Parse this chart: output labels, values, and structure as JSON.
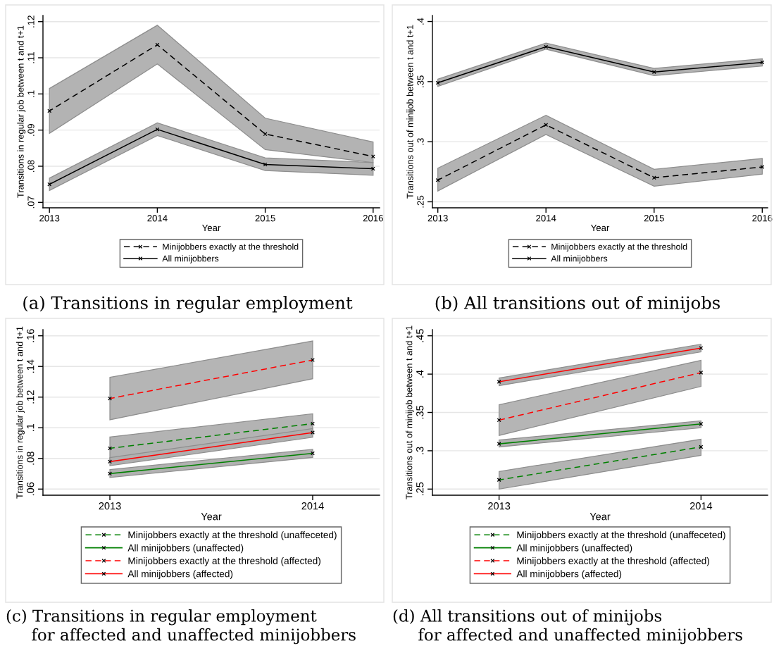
{
  "chart_data": [
    {
      "type": "line",
      "annotations": [
        "(a) Transitions in regular employment"
      ],
      "xlabel": "Year",
      "ylabel": "Transitions in regular job between t and t+1",
      "x": [
        2013,
        2014,
        2015,
        2016
      ],
      "xlim": [
        2012.94,
        2016.06
      ],
      "xticks": [
        2013,
        2014,
        2015,
        2016
      ],
      "ylim": [
        0.0685,
        0.1217
      ],
      "yticks": [
        {
          "value": 0.07,
          "label": ".07"
        },
        {
          "value": 0.08,
          "label": ".08"
        },
        {
          "value": 0.09,
          "label": ".09"
        },
        {
          "value": 0.1,
          "label": ".1"
        },
        {
          "value": 0.11,
          "label": ".11"
        },
        {
          "value": 0.12,
          "label": ".12"
        }
      ],
      "grid": "y",
      "legend": "bottom",
      "marker": "cross",
      "series": [
        {
          "name": "Minijobbers exactly at the threshold",
          "color": "#000000",
          "line_style": "dashed",
          "values": [
            0.0953,
            0.1136,
            0.0889,
            0.0827
          ],
          "lower": [
            0.0891,
            0.1083,
            0.0846,
            0.081
          ],
          "upper": [
            0.1015,
            0.119,
            0.0933,
            0.0867
          ]
        },
        {
          "name": "All minijobbers",
          "color": "#000000",
          "line_style": "solid",
          "values": [
            0.075,
            0.0902,
            0.0805,
            0.0793
          ],
          "lower": [
            0.0733,
            0.0885,
            0.0788,
            0.0775
          ],
          "upper": [
            0.0767,
            0.092,
            0.0823,
            0.081
          ]
        }
      ]
    },
    {
      "type": "line",
      "annotations": [
        "(b) All transitions out of minijobs"
      ],
      "xlabel": "Year",
      "ylabel": "Transitions out of minijob between t and t+1",
      "x": [
        2013,
        2014,
        2015,
        2016
      ],
      "xlim": [
        2012.95,
        2016.05
      ],
      "xticks": [
        2013,
        2014,
        2015,
        2016
      ],
      "ylim": [
        0.245,
        0.405
      ],
      "yticks": [
        {
          "value": 0.25,
          "label": ".25"
        },
        {
          "value": 0.3,
          "label": ".3"
        },
        {
          "value": 0.35,
          "label": ".35"
        },
        {
          "value": 0.4,
          "label": ".4"
        }
      ],
      "grid": "y",
      "legend": "bottom",
      "marker": "cross",
      "series": [
        {
          "name": "Minijobbers exactly at the threshold",
          "color": "#000000",
          "line_style": "dashed",
          "values": [
            0.268,
            0.314,
            0.27,
            0.279
          ],
          "lower": [
            0.259,
            0.306,
            0.263,
            0.273
          ],
          "upper": [
            0.278,
            0.322,
            0.277,
            0.286
          ]
        },
        {
          "name": "All minijobbers",
          "color": "#000000",
          "line_style": "solid",
          "values": [
            0.349,
            0.379,
            0.358,
            0.366
          ],
          "lower": [
            0.346,
            0.377,
            0.355,
            0.363
          ],
          "upper": [
            0.352,
            0.382,
            0.361,
            0.369
          ]
        }
      ]
    },
    {
      "type": "line",
      "annotations": [
        "(c) Transitions in regular employment\nfor affected and unaffected minijobbers"
      ],
      "xlabel": "Year",
      "ylabel": "Transitions in regular job between t and t+1",
      "x": [
        2013,
        2014
      ],
      "xlim": [
        2012.67,
        2014.33
      ],
      "xticks": [
        2013,
        2014
      ],
      "ylim": [
        0.056,
        0.164
      ],
      "yticks": [
        {
          "value": 0.06,
          "label": ".06"
        },
        {
          "value": 0.08,
          "label": ".08"
        },
        {
          "value": 0.1,
          "label": ".1"
        },
        {
          "value": 0.12,
          "label": ".12"
        },
        {
          "value": 0.14,
          "label": ".14"
        },
        {
          "value": 0.16,
          "label": ".16"
        }
      ],
      "grid": "y",
      "legend": "bottom",
      "marker": "cross",
      "series": [
        {
          "name": "Minijobbers exactly at the threshold (unaffeceted)",
          "color": "#008000",
          "line_style": "dashed",
          "values": [
            0.0866,
            0.1027
          ],
          "lower": [
            0.0792,
            0.0962
          ],
          "upper": [
            0.094,
            0.1091
          ]
        },
        {
          "name": "All minijobbers (unaffected)",
          "color": "#008000",
          "line_style": "solid",
          "values": [
            0.0701,
            0.0833
          ],
          "lower": [
            0.0676,
            0.0806
          ],
          "upper": [
            0.0727,
            0.0859
          ]
        },
        {
          "name": "Minijobbers exactly at the threshold (affected)",
          "color": "#ff0000",
          "line_style": "dashed",
          "values": [
            0.1191,
            0.1442
          ],
          "lower": [
            0.1052,
            0.132
          ],
          "upper": [
            0.1329,
            0.1566
          ]
        },
        {
          "name": "All minijobbers (affected)",
          "color": "#ff0000",
          "line_style": "solid",
          "values": [
            0.0779,
            0.0969
          ],
          "lower": [
            0.0753,
            0.0938
          ],
          "upper": [
            0.0805,
            0.0995
          ]
        }
      ]
    },
    {
      "type": "line",
      "annotations": [
        "(d) All transitions out of minijobs\nfor affected and unaffected minijobbers"
      ],
      "xlabel": "Year",
      "ylabel": "Transitions out of minijob between t and t+1",
      "x": [
        2013,
        2014
      ],
      "xlim": [
        2012.67,
        2014.33
      ],
      "xticks": [
        2013,
        2014
      ],
      "ylim": [
        0.242,
        0.458
      ],
      "yticks": [
        {
          "value": 0.25,
          "label": ".25"
        },
        {
          "value": 0.3,
          "label": ".3"
        },
        {
          "value": 0.35,
          "label": ".35"
        },
        {
          "value": 0.4,
          "label": ".4"
        },
        {
          "value": 0.45,
          "label": ".45"
        }
      ],
      "grid": "y",
      "legend": "bottom",
      "marker": "cross",
      "series": [
        {
          "name": "Minijobbers exactly at the threshold (unaffeceted)",
          "color": "#008000",
          "line_style": "dashed",
          "values": [
            0.262,
            0.305
          ],
          "lower": [
            0.25,
            0.294
          ],
          "upper": [
            0.273,
            0.315
          ]
        },
        {
          "name": "All minijobbers (unaffected)",
          "color": "#008000",
          "line_style": "solid",
          "values": [
            0.309,
            0.335
          ],
          "lower": [
            0.305,
            0.33
          ],
          "upper": [
            0.314,
            0.339
          ]
        },
        {
          "name": "Minijobbers exactly at the threshold (affected)",
          "color": "#ff0000",
          "line_style": "dashed",
          "values": [
            0.34,
            0.402
          ],
          "lower": [
            0.32,
            0.384
          ],
          "upper": [
            0.36,
            0.418
          ]
        },
        {
          "name": "All minijobbers (affected)",
          "color": "#ff0000",
          "line_style": "solid",
          "values": [
            0.39,
            0.434
          ],
          "lower": [
            0.385,
            0.429
          ],
          "upper": [
            0.395,
            0.439
          ]
        }
      ]
    }
  ]
}
